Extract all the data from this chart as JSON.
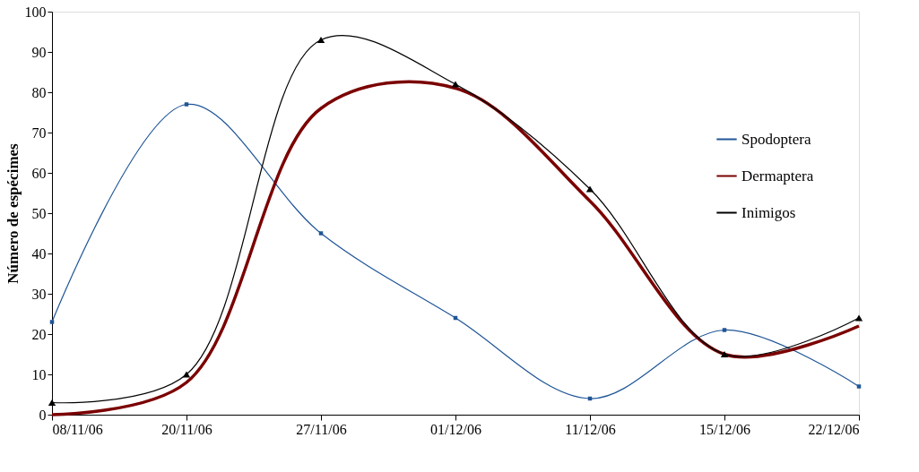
{
  "chart_data": {
    "type": "line",
    "ylabel": "Número de espécimes",
    "categories": [
      "08/11/06",
      "20/11/06",
      "27/11/06",
      "01/12/06",
      "11/12/06",
      "15/12/06",
      "22/12/06"
    ],
    "series": [
      {
        "name": "Spodoptera",
        "color": "#1f5596",
        "marker": "square",
        "values": [
          23,
          77,
          45,
          24,
          4,
          21,
          7
        ]
      },
      {
        "name": "Dermaptera",
        "color": "#7b0000",
        "marker": "none",
        "values": [
          0,
          8,
          76,
          81,
          53,
          15,
          22
        ]
      },
      {
        "name": "Inimigos",
        "color": "#000000",
        "marker": "triangle",
        "values": [
          3,
          10,
          93,
          82,
          56,
          15,
          24
        ]
      }
    ],
    "ylim": [
      0,
      100
    ],
    "yticks": [
      0,
      10,
      20,
      30,
      40,
      50,
      60,
      70,
      80,
      90,
      100
    ],
    "grid": false,
    "legend": "right"
  }
}
